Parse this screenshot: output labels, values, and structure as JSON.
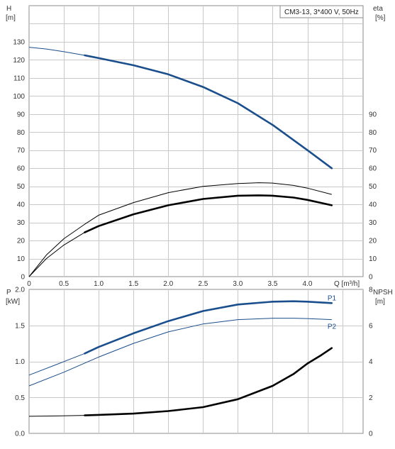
{
  "chart_data": [
    {
      "type": "line",
      "legend_label": "CM3-13, 3*400 V, 50Hz",
      "legend_placement": "top-right",
      "grid": true,
      "xlabel": "Q [m³/h]",
      "xlim": [
        0,
        4.8
      ],
      "x_ticks": [
        "0",
        "0.5",
        "1.0",
        "1.5",
        "2.0",
        "2.5",
        "3.0",
        "3.5",
        "4.0"
      ],
      "left_axis": {
        "title_line1": "H",
        "title_line2": "[m]",
        "ylim": [
          0,
          150
        ],
        "ticks": [
          "0",
          "10",
          "20",
          "30",
          "40",
          "50",
          "60",
          "70",
          "80",
          "90",
          "100",
          "110",
          "120",
          "130"
        ]
      },
      "right_axis": {
        "title_line1": "eta",
        "title_line2": "[%]",
        "ylim": [
          0,
          150
        ],
        "ticks": [
          "0",
          "10",
          "20",
          "30",
          "40",
          "50",
          "60",
          "70",
          "80",
          "90"
        ]
      },
      "series": [
        {
          "axis": "left",
          "color": "#1a4e8c",
          "thin_x": [
            0,
            0.25,
            0.5,
            0.8
          ],
          "thin_y": [
            127,
            126,
            124.5,
            122.5
          ],
          "thick_x": [
            0.8,
            1.0,
            1.5,
            2.0,
            2.5,
            3.0,
            3.5,
            4.0,
            4.35
          ],
          "thick_y": [
            122.5,
            121,
            117,
            112,
            105,
            96,
            84,
            70,
            60
          ]
        },
        {
          "axis": "right",
          "color": "#000000",
          "thin_x": [
            0,
            0.25,
            0.5,
            0.8,
            1.0,
            1.5,
            2.0,
            2.5,
            3.0,
            3.3,
            3.5,
            3.8,
            4.0,
            4.35
          ],
          "thin_y": [
            0,
            12,
            21,
            29,
            34,
            41,
            46.5,
            50,
            51.5,
            52,
            51.8,
            50.5,
            49,
            45.5
          ]
        },
        {
          "axis": "right",
          "color": "#000000",
          "thin_x": [
            0,
            0.25,
            0.5,
            0.8
          ],
          "thin_y": [
            0,
            10,
            17.5,
            24.5
          ],
          "thick_x": [
            0.8,
            1.0,
            1.5,
            2.0,
            2.5,
            3.0,
            3.3,
            3.5,
            3.8,
            4.0,
            4.35
          ],
          "thick_y": [
            24.5,
            28,
            34.5,
            39.5,
            43,
            44.8,
            45,
            44.8,
            43.8,
            42.5,
            39.5
          ]
        }
      ]
    },
    {
      "type": "line",
      "grid": true,
      "xlim": [
        0,
        4.8
      ],
      "left_axis": {
        "title_line1": "P",
        "title_line2": "[kW]",
        "ylim": [
          0,
          2.0
        ],
        "ticks": [
          "0.0",
          "0.5",
          "1.0",
          "1.5",
          "2.0"
        ]
      },
      "right_axis": {
        "title_line1": "NPSH",
        "title_line2": "[m]",
        "ylim": [
          0,
          8
        ],
        "ticks": [
          "0",
          "2",
          "4",
          "6",
          "8"
        ]
      },
      "series": [
        {
          "name": "P1",
          "axis": "left",
          "color": "#1a4e8c",
          "thin_x": [
            0,
            0.4,
            0.8
          ],
          "thin_y": [
            0.81,
            0.96,
            1.11
          ],
          "thick_x": [
            0.8,
            1.0,
            1.5,
            2.0,
            2.5,
            3.0,
            3.5,
            3.8,
            4.0,
            4.35
          ],
          "thick_y": [
            1.11,
            1.2,
            1.39,
            1.56,
            1.7,
            1.79,
            1.83,
            1.835,
            1.83,
            1.81
          ]
        },
        {
          "name": "P2",
          "axis": "left",
          "color": "#1a4e8c",
          "thin_x": [
            0,
            0.5,
            1.0,
            1.5,
            2.0,
            2.5,
            3.0,
            3.5,
            3.8,
            4.0,
            4.35
          ],
          "thin_y": [
            0.66,
            0.85,
            1.06,
            1.25,
            1.41,
            1.52,
            1.58,
            1.6,
            1.6,
            1.595,
            1.58
          ]
        },
        {
          "axis": "right",
          "color": "#000000",
          "thin_x": [
            0,
            0.4,
            0.8
          ],
          "thin_y": [
            0.95,
            0.97,
            1.0
          ],
          "thick_x": [
            0.8,
            1.0,
            1.5,
            2.0,
            2.5,
            3.0,
            3.5,
            3.8,
            4.0,
            4.2,
            4.35
          ],
          "thick_y": [
            1.0,
            1.03,
            1.1,
            1.24,
            1.46,
            1.9,
            2.64,
            3.3,
            3.88,
            4.35,
            4.74
          ]
        }
      ]
    }
  ]
}
